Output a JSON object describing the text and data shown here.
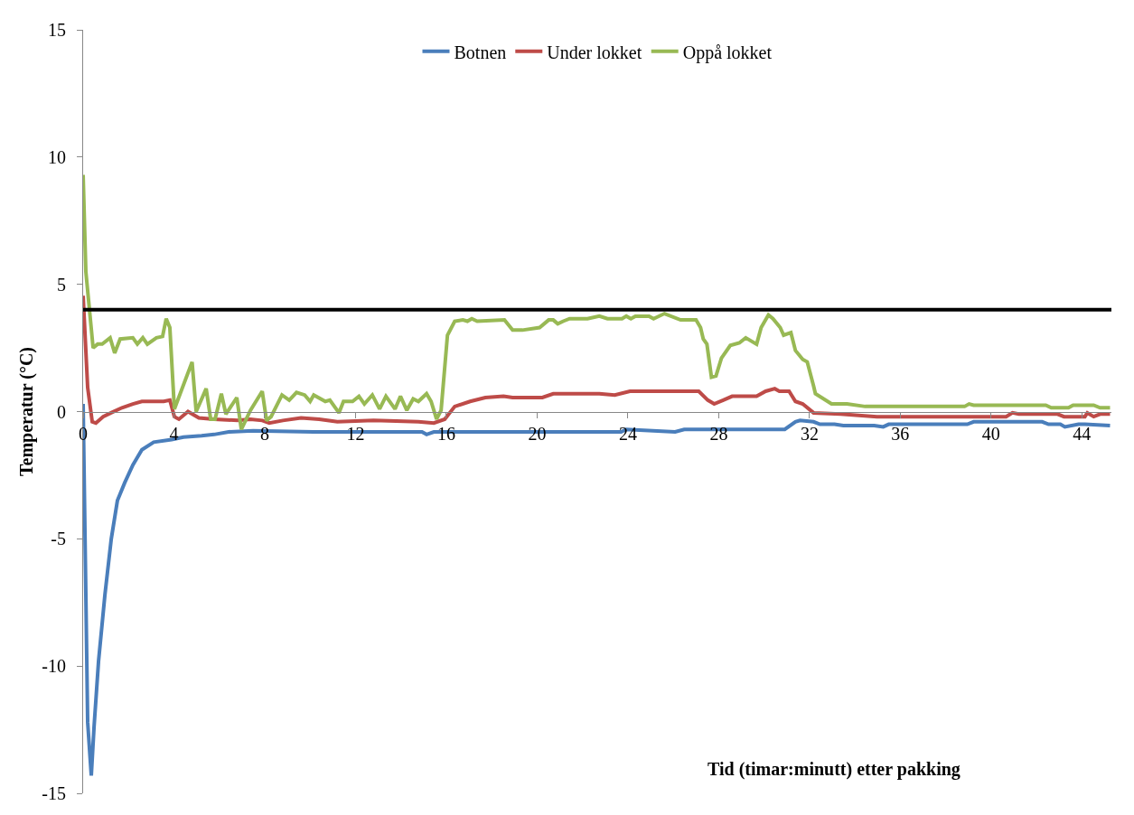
{
  "chart_data": {
    "type": "line",
    "xlabel": "Tid (timar:minutt) etter pakking",
    "ylabel": "Temperatur (°C)",
    "xlim": [
      0,
      45.3
    ],
    "xticks": [
      0,
      4,
      8,
      12,
      16,
      20,
      24,
      28,
      32,
      36,
      40,
      44
    ],
    "ylim": [
      -15,
      15
    ],
    "yticks": [
      -15,
      -10,
      -5,
      0,
      5,
      10,
      15
    ],
    "grid": false,
    "legend": "top",
    "marker": "none",
    "line_style": "solid",
    "ref_lines": [
      {
        "axis": "y",
        "value": 4,
        "color": "#000000"
      }
    ],
    "series": [
      {
        "name": "Botnen",
        "color": "#4a7ebb",
        "x": [
          0,
          0.2,
          0.36,
          0.48,
          0.68,
          0.96,
          1.24,
          1.51,
          1.83,
          2.19,
          2.59,
          3.11,
          3.9,
          4.42,
          5.22,
          5.77,
          6.41,
          7.49,
          10.16,
          14.93,
          15.13,
          15.45,
          19.44,
          23.7,
          23.93,
          26.08,
          26.48,
          30.91,
          31.38,
          31.58,
          32.18,
          32.46,
          33.1,
          33.49,
          34.85,
          35.25,
          35.49,
          38.95,
          39.23,
          42.25,
          42.53,
          43.05,
          43.25,
          43.85,
          44.13,
          45.24
        ],
        "values": [
          0.3,
          -12.2,
          -14.3,
          -12.4,
          -9.8,
          -7.2,
          -5.0,
          -3.5,
          -2.8,
          -2.1,
          -1.5,
          -1.2,
          -1.1,
          -1.0,
          -0.95,
          -0.9,
          -0.8,
          -0.75,
          -0.8,
          -0.8,
          -0.9,
          -0.8,
          -0.8,
          -0.8,
          -0.7,
          -0.8,
          -0.7,
          -0.7,
          -0.4,
          -0.35,
          -0.4,
          -0.5,
          -0.5,
          -0.55,
          -0.55,
          -0.6,
          -0.5,
          -0.5,
          -0.4,
          -0.4,
          -0.5,
          -0.5,
          -0.6,
          -0.5,
          -0.5,
          -0.55
        ]
      },
      {
        "name": "Under lokket",
        "color": "#be4b48",
        "x": [
          0,
          0.2,
          0.4,
          0.56,
          0.88,
          1.23,
          1.71,
          2.19,
          2.59,
          3.55,
          3.82,
          4.02,
          4.22,
          4.62,
          5.1,
          5.77,
          6.81,
          7.37,
          7.89,
          8.2,
          8.8,
          9.6,
          10.4,
          11.2,
          12.8,
          14.77,
          15.45,
          15.93,
          16.37,
          17.05,
          17.72,
          18.52,
          18.92,
          20.23,
          20.71,
          22.74,
          23.42,
          24.09,
          25.69,
          27.12,
          27.52,
          27.8,
          28.2,
          28.59,
          29.67,
          30.07,
          30.47,
          30.67,
          31.1,
          31.38,
          31.7,
          32.18,
          33.37,
          34.97,
          40.66,
          40.94,
          41.22,
          42.93,
          43.21,
          44.13,
          44.24,
          44.52,
          44.8,
          45.24
        ],
        "values": [
          4.55,
          0.95,
          -0.4,
          -0.45,
          -0.2,
          -0.05,
          0.15,
          0.3,
          0.4,
          0.4,
          0.45,
          -0.2,
          -0.3,
          0,
          -0.25,
          -0.3,
          -0.35,
          -0.3,
          -0.35,
          -0.45,
          -0.35,
          -0.25,
          -0.3,
          -0.4,
          -0.35,
          -0.4,
          -0.45,
          -0.3,
          0.2,
          0.4,
          0.55,
          0.6,
          0.55,
          0.55,
          0.7,
          0.7,
          0.65,
          0.8,
          0.8,
          0.8,
          0.45,
          0.3,
          0.45,
          0.6,
          0.6,
          0.8,
          0.9,
          0.8,
          0.8,
          0.4,
          0.3,
          -0.05,
          -0.1,
          -0.2,
          -0.2,
          -0.05,
          -0.1,
          -0.1,
          -0.2,
          -0.2,
          -0.05,
          -0.2,
          -0.1,
          -0.1
        ]
      },
      {
        "name": "Oppå lokket",
        "color": "#98b954",
        "x": [
          0,
          0.12,
          0.44,
          0.64,
          0.84,
          1.19,
          1.39,
          1.63,
          2.19,
          2.39,
          2.63,
          2.83,
          3.23,
          3.5,
          3.66,
          3.82,
          4.02,
          4.8,
          4.98,
          5.42,
          5.62,
          5.81,
          6.09,
          6.29,
          6.77,
          6.97,
          7.37,
          7.89,
          8.08,
          8.28,
          8.76,
          9.08,
          9.4,
          9.76,
          10.0,
          10.16,
          10.67,
          10.87,
          11.27,
          11.47,
          11.87,
          12.15,
          12.39,
          12.74,
          13.06,
          13.34,
          13.74,
          13.98,
          14.26,
          14.54,
          14.77,
          15.13,
          15.33,
          15.57,
          15.77,
          16.05,
          16.37,
          16.73,
          16.93,
          17.12,
          17.36,
          18.56,
          18.92,
          19.35,
          20.11,
          20.51,
          20.71,
          20.91,
          21.15,
          21.43,
          22.22,
          22.74,
          23.1,
          23.74,
          23.93,
          24.13,
          24.33,
          24.93,
          25.13,
          25.61,
          26.32,
          27.0,
          27.2,
          27.32,
          27.48,
          27.68,
          27.88,
          28.12,
          28.51,
          28.91,
          29.19,
          29.67,
          29.87,
          30.19,
          30.39,
          30.71,
          30.86,
          31.18,
          31.38,
          31.7,
          31.9,
          32.18,
          32.26,
          32.97,
          33.65,
          34.45,
          38.83,
          39.03,
          39.23,
          42.41,
          42.65,
          43.41,
          43.61,
          44.52,
          44.8,
          45.24
        ],
        "values": [
          9.3,
          5.5,
          2.5,
          2.65,
          2.65,
          2.9,
          2.3,
          2.85,
          2.9,
          2.65,
          2.9,
          2.65,
          2.9,
          2.95,
          3.65,
          3.3,
          0.1,
          1.95,
          0,
          0.9,
          -0.3,
          -0.3,
          0.7,
          -0.1,
          0.55,
          -0.7,
          0.05,
          0.8,
          -0.35,
          -0.2,
          0.65,
          0.45,
          0.75,
          0.65,
          0.4,
          0.65,
          0.4,
          0.45,
          -0.05,
          0.4,
          0.4,
          0.6,
          0.3,
          0.65,
          0.1,
          0.6,
          0.1,
          0.6,
          0.05,
          0.5,
          0.4,
          0.7,
          0.4,
          -0.3,
          0.05,
          3.0,
          3.55,
          3.6,
          3.55,
          3.65,
          3.55,
          3.6,
          3.2,
          3.2,
          3.3,
          3.6,
          3.6,
          3.45,
          3.55,
          3.65,
          3.65,
          3.75,
          3.65,
          3.65,
          3.75,
          3.65,
          3.75,
          3.75,
          3.65,
          3.85,
          3.6,
          3.6,
          3.3,
          2.85,
          2.65,
          1.35,
          1.4,
          2.1,
          2.6,
          2.7,
          2.9,
          2.65,
          3.3,
          3.8,
          3.65,
          3.3,
          3.0,
          3.1,
          2.4,
          2.05,
          1.95,
          1.0,
          0.7,
          0.3,
          0.3,
          0.2,
          0.2,
          0.3,
          0.25,
          0.25,
          0.15,
          0.15,
          0.25,
          0.25,
          0.15,
          0.15
        ]
      }
    ]
  }
}
